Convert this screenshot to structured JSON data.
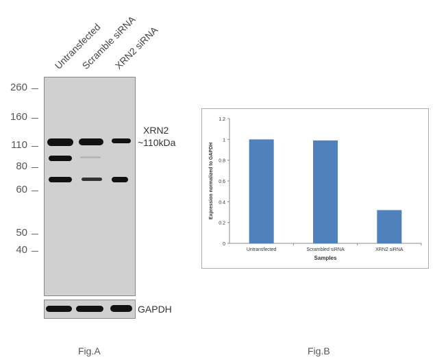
{
  "fig_a": {
    "lanes": [
      "Untransfected",
      "Scramble siRNA",
      "XRN2 siRNA"
    ],
    "mw_markers": [
      "260",
      "160",
      "110",
      "80",
      "60",
      "50",
      "40"
    ],
    "target_name": "XRN2",
    "target_size": "~110kDa",
    "loading_control": "GAPDH",
    "caption": "Fig.A"
  },
  "fig_b": {
    "caption": "Fig.B"
  },
  "chart_data": {
    "type": "bar",
    "categories": [
      "Untransfected",
      "Scrambled siRNA",
      "XRN2 siRNA"
    ],
    "values": [
      1.0,
      0.99,
      0.32
    ],
    "ylabel": "Expression normalized to GAPDH",
    "xlabel": "Samples",
    "ylim": [
      0,
      1.2
    ],
    "yticks": [
      "0",
      "0.2",
      "0.4",
      "0.6",
      "0.8",
      "1",
      "1.2"
    ],
    "bar_color": "#4f81bd",
    "grid": false,
    "legend": false
  }
}
